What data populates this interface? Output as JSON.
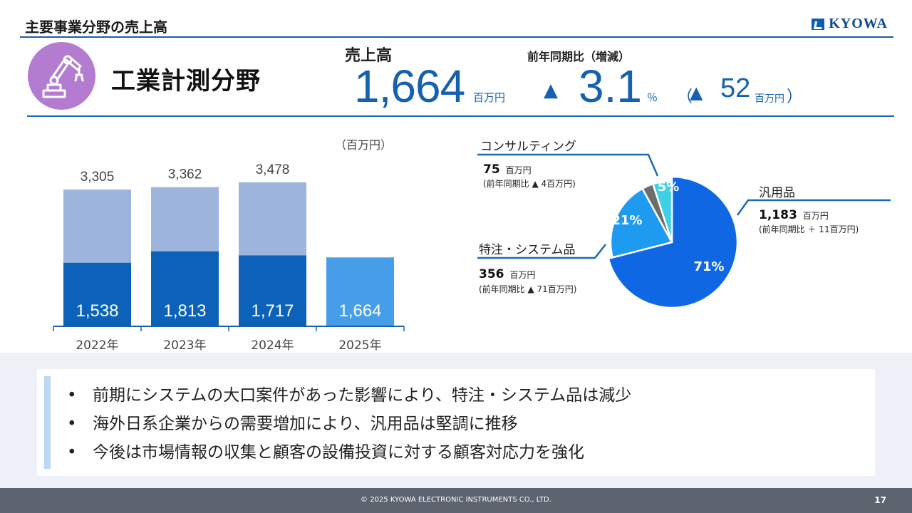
{
  "header": {
    "section_title": "主要事業分野の売上高",
    "logo_text": "KYOWA"
  },
  "segment": {
    "name": "工業計測分野",
    "icon": "robot-arm-icon"
  },
  "kpi": {
    "sales_label": "売上高",
    "sales_value": "1,664",
    "sales_unit": "百万円",
    "yoy_label": "前年同期比（増減）",
    "yoy_triangle": "▲",
    "yoy_pct": "3.1",
    "yoy_pct_unit": "％",
    "yoy_open": "（",
    "yoy_amount_triangle": "▲",
    "yoy_amount": "52",
    "yoy_amount_unit": "百万円",
    "yoy_close": "）"
  },
  "bar_unit": "（百万円）",
  "chart_data": [
    {
      "type": "bar",
      "stacked": true,
      "categories": [
        "2022年",
        "2023年",
        "2024年",
        "2025年"
      ],
      "series": [
        {
          "values": [
            1538,
            1813,
            1717,
            1664
          ],
          "color": "#0b62b8"
        },
        {
          "values": [
            1767,
            1549,
            1761,
            null
          ],
          "color": "#9db5dc"
        }
      ],
      "totals": [
        3305,
        3362,
        3478,
        null
      ],
      "data_labels": [
        "1,538",
        "1,813",
        "1,717",
        "1,664"
      ],
      "total_labels": [
        "3,305",
        "3,362",
        "3,478",
        ""
      ],
      "highlight_color": "#4aa3ec",
      "ylim": [
        0,
        3700
      ]
    },
    {
      "type": "pie",
      "slices": [
        {
          "label": "汎用品",
          "percent": 71,
          "percent_label": "71%",
          "amount": "1,183",
          "unit": "百万円",
          "yoy_text": "(前年同期比 ＋ 11百万円)",
          "color": "#0f67e4"
        },
        {
          "label": "特注・システム品",
          "percent": 21,
          "percent_label": "21%",
          "amount": "356",
          "unit": "百万円",
          "yoy_text": "(前年同期比 ▲ 71百万円)",
          "color": "#1e9bf0"
        },
        {
          "label": "",
          "percent": 3,
          "percent_label": "",
          "color": "#6d6d6d"
        },
        {
          "label": "コンサルティング",
          "percent": 5,
          "percent_label": "5%",
          "amount": "75",
          "unit": "百万円",
          "yoy_text": "(前年同期比 ▲ 4百万円)",
          "color": "#3fd0e6"
        }
      ]
    }
  ],
  "notes": [
    "前期にシステムの大口案件があった影響により、特注・システム品は減少",
    "海外日系企業からの需要増加により、汎用品は堅調に推移",
    "今後は市場情報の収集と顧客の設備投資に対する顧客対応力を強化"
  ],
  "footer": {
    "copyright": "© 2025 KYOWA ELECTRONIC INSTRUMENTS CO., LTD.",
    "page": "17"
  }
}
